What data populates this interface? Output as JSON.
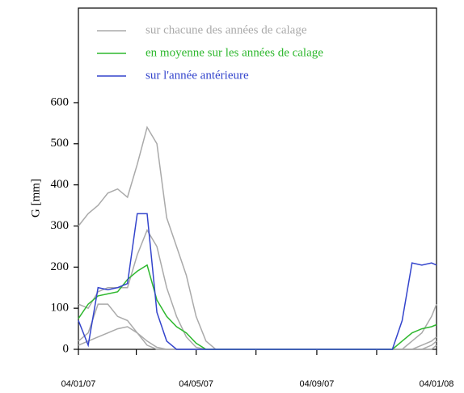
{
  "chart_data": {
    "type": "line",
    "ylabel": "G [mm]",
    "x": [
      "2007-01-04",
      "2007-01-14",
      "2007-01-24",
      "2007-02-03",
      "2007-02-13",
      "2007-02-23",
      "2007-03-05",
      "2007-03-15",
      "2007-03-25",
      "2007-04-04",
      "2007-04-14",
      "2007-04-24",
      "2007-05-04",
      "2007-05-14",
      "2007-05-24",
      "2007-06-03",
      "2007-06-13",
      "2007-06-23",
      "2007-07-03",
      "2007-07-13",
      "2007-07-23",
      "2007-08-02",
      "2007-08-12",
      "2007-08-22",
      "2007-09-01",
      "2007-09-11",
      "2007-09-21",
      "2007-10-01",
      "2007-10-11",
      "2007-10-21",
      "2007-10-31",
      "2007-11-10",
      "2007-11-20",
      "2007-11-30",
      "2007-12-10",
      "2007-12-20",
      "2007-12-30",
      "2008-01-04"
    ],
    "series": [
      {
        "name": "sur chacune des années de calage",
        "color": "#aaaaaa",
        "values": [
          300,
          330,
          350,
          380,
          390,
          370,
          450,
          540,
          500,
          320,
          250,
          180,
          80,
          20,
          0,
          0,
          0,
          0,
          0,
          0,
          0,
          0,
          0,
          0,
          0,
          0,
          0,
          0,
          0,
          0,
          0,
          0,
          0,
          0,
          20,
          40,
          80,
          110
        ]
      },
      {
        "name": "sur chacune des années de calage",
        "color": "#aaaaaa",
        "values": [
          110,
          100,
          140,
          150,
          150,
          150,
          230,
          290,
          250,
          150,
          80,
          30,
          5,
          0,
          0,
          0,
          0,
          0,
          0,
          0,
          0,
          0,
          0,
          0,
          0,
          0,
          0,
          0,
          0,
          0,
          0,
          0,
          0,
          0,
          0,
          10,
          20,
          30
        ]
      },
      {
        "name": "sur chacune des années de calage",
        "color": "#aaaaaa",
        "values": [
          20,
          40,
          110,
          110,
          80,
          70,
          40,
          20,
          5,
          0,
          0,
          0,
          0,
          0,
          0,
          0,
          0,
          0,
          0,
          0,
          0,
          0,
          0,
          0,
          0,
          0,
          0,
          0,
          0,
          0,
          0,
          0,
          0,
          0,
          0,
          0,
          0,
          10
        ]
      },
      {
        "name": "sur chacune des années de calage",
        "color": "#aaaaaa",
        "values": [
          10,
          20,
          30,
          40,
          50,
          55,
          40,
          10,
          0,
          0,
          0,
          0,
          0,
          0,
          0,
          0,
          0,
          0,
          0,
          0,
          0,
          0,
          0,
          0,
          0,
          0,
          0,
          0,
          0,
          0,
          0,
          0,
          0,
          0,
          0,
          0,
          10,
          20
        ]
      },
      {
        "name": "en moyenne sur les années de calage",
        "color": "#2eb82e",
        "values": [
          75,
          110,
          130,
          135,
          140,
          170,
          190,
          205,
          120,
          80,
          55,
          40,
          15,
          0,
          0,
          0,
          0,
          0,
          0,
          0,
          0,
          0,
          0,
          0,
          0,
          0,
          0,
          0,
          0,
          0,
          0,
          0,
          0,
          20,
          40,
          50,
          55,
          60
        ]
      },
      {
        "name": "sur l'année antérieure",
        "color": "#3344cc",
        "values": [
          70,
          10,
          150,
          145,
          150,
          160,
          330,
          330,
          90,
          20,
          0,
          0,
          0,
          0,
          0,
          0,
          0,
          0,
          0,
          0,
          0,
          0,
          0,
          0,
          0,
          0,
          0,
          0,
          0,
          0,
          0,
          0,
          0,
          70,
          210,
          205,
          210,
          205
        ]
      }
    ],
    "xlim": [
      "2007-01-04",
      "2008-01-04"
    ],
    "xticks": [
      {
        "value": "2007-01-04",
        "label": "04/01/07"
      },
      {
        "value": "2007-03-04"
      },
      {
        "value": "2007-05-04",
        "label": "04/05/07"
      },
      {
        "value": "2007-07-04"
      },
      {
        "value": "2007-09-04",
        "label": "04/09/07"
      },
      {
        "value": "2007-11-04"
      },
      {
        "value": "2008-01-04",
        "label": "04/01/08"
      }
    ],
    "ylim": [
      0,
      830
    ],
    "yticks": [
      0,
      100,
      200,
      300,
      400,
      500,
      600
    ],
    "legend": "top"
  }
}
